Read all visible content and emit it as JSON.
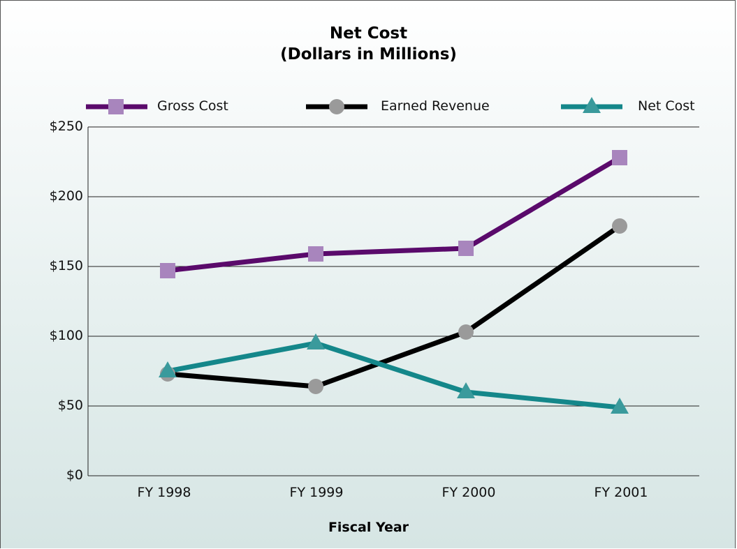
{
  "chart_data": {
    "type": "line",
    "title": "Net Cost",
    "subtitle": "(Dollars in Millions)",
    "xlabel": "Fiscal Year",
    "ylabel": "",
    "categories": [
      "FY 1998",
      "FY 1999",
      "FY 2000",
      "FY 2001"
    ],
    "ylim": [
      0,
      250
    ],
    "yticks": [
      "$0",
      "$50",
      "$100",
      "$150",
      "$200",
      "$250"
    ],
    "ytick_values": [
      0,
      50,
      100,
      150,
      200,
      250
    ],
    "grid": true,
    "legend_position": "top",
    "series": [
      {
        "name": "Gross Cost",
        "values": [
          147,
          159,
          163,
          228
        ],
        "color": "#5a0a6b",
        "marker": "square",
        "marker_color": "#a885bd"
      },
      {
        "name": "Earned Revenue",
        "values": [
          73,
          64,
          103,
          179
        ],
        "color": "#000000",
        "marker": "circle",
        "marker_color": "#9a9a9a"
      },
      {
        "name": "Net Cost",
        "values": [
          75,
          95,
          60,
          49
        ],
        "color": "#14878a",
        "marker": "triangle",
        "marker_color": "#3a9a9c"
      }
    ]
  }
}
